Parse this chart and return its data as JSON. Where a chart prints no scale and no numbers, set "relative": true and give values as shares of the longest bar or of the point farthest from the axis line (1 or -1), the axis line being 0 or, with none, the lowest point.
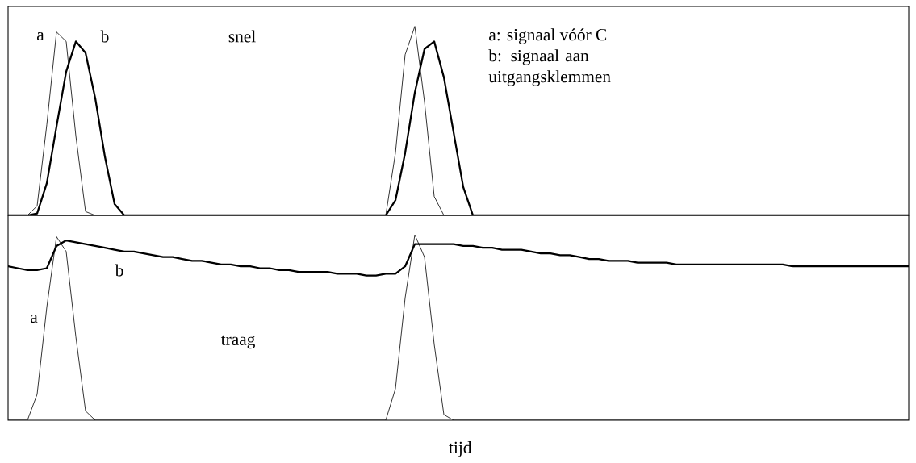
{
  "chart_data": [
    {
      "type": "line",
      "relative": true,
      "tick_labels": false,
      "categories": [
        null,
        null,
        null,
        null,
        null,
        null,
        null,
        null,
        null,
        null,
        null,
        null,
        null,
        null,
        null,
        null,
        null,
        null,
        null,
        null,
        null,
        null,
        null,
        null,
        null,
        null,
        null,
        null,
        null,
        null,
        null,
        null,
        null,
        null,
        null,
        null,
        null,
        null,
        null,
        null,
        null,
        null,
        null,
        null,
        null,
        null,
        null,
        null,
        null,
        null,
        null,
        null,
        null,
        null,
        null,
        null,
        null,
        null,
        null,
        null,
        null,
        null,
        null,
        null,
        null,
        null,
        null,
        null,
        null,
        null,
        null,
        null,
        null,
        null,
        null,
        null,
        null,
        null,
        null,
        null,
        null,
        null,
        null,
        null,
        null,
        null,
        null,
        null,
        null,
        null,
        null,
        null,
        null,
        null
      ],
      "series": [
        {
          "name": "a",
          "color": "#000000",
          "values": [
            0,
            0,
            0,
            0.05,
            0.48,
            0.97,
            0.92,
            0.42,
            0.02,
            0,
            0,
            0,
            0,
            0,
            0,
            0,
            0,
            0,
            0,
            0,
            0,
            0,
            0,
            0,
            0,
            0,
            0,
            0,
            0,
            0,
            0,
            0,
            0,
            0,
            0,
            0,
            0,
            0,
            0,
            0,
            0.33,
            0.85,
            1,
            0.6,
            0.1,
            0,
            0,
            0,
            0,
            0,
            0,
            0,
            0,
            0,
            0,
            0,
            0,
            0,
            0,
            0,
            0,
            0,
            0,
            0,
            0,
            0,
            0,
            0,
            0,
            0,
            0,
            0,
            0,
            0,
            0,
            0,
            0,
            0,
            0,
            0,
            0,
            0,
            0,
            0,
            0,
            0,
            0,
            0,
            0,
            0,
            0,
            0,
            0,
            0
          ]
        },
        {
          "name": "b",
          "color": "#000000",
          "values": [
            0,
            0,
            0,
            0.01,
            0.17,
            0.47,
            0.76,
            0.92,
            0.86,
            0.62,
            0.31,
            0.06,
            0,
            0,
            0,
            0,
            0,
            0,
            0,
            0,
            0,
            0,
            0,
            0,
            0,
            0,
            0,
            0,
            0,
            0,
            0,
            0,
            0,
            0,
            0,
            0,
            0,
            0,
            0,
            0,
            0.08,
            0.33,
            0.65,
            0.88,
            0.92,
            0.73,
            0.44,
            0.15,
            0,
            0,
            0,
            0,
            0,
            0,
            0,
            0,
            0,
            0,
            0,
            0,
            0,
            0,
            0,
            0,
            0,
            0,
            0,
            0,
            0,
            0,
            0,
            0,
            0,
            0,
            0,
            0,
            0,
            0,
            0,
            0,
            0,
            0,
            0,
            0,
            0,
            0,
            0,
            0,
            0,
            0,
            0,
            0,
            0,
            0
          ]
        }
      ],
      "annotations": [
        "snel",
        "a: signaal vóór C",
        "b: signaal aan uitgangsklemmen"
      ]
    },
    {
      "type": "line",
      "relative": true,
      "tick_labels": false,
      "xlabel": "tijd",
      "categories": [
        null,
        null,
        null,
        null,
        null,
        null,
        null,
        null,
        null,
        null,
        null,
        null,
        null,
        null,
        null,
        null,
        null,
        null,
        null,
        null,
        null,
        null,
        null,
        null,
        null,
        null,
        null,
        null,
        null,
        null,
        null,
        null,
        null,
        null,
        null,
        null,
        null,
        null,
        null,
        null,
        null,
        null,
        null,
        null,
        null,
        null,
        null,
        null,
        null,
        null,
        null,
        null,
        null,
        null,
        null,
        null,
        null,
        null,
        null,
        null,
        null,
        null,
        null,
        null,
        null,
        null,
        null,
        null,
        null,
        null,
        null,
        null,
        null,
        null,
        null,
        null,
        null,
        null,
        null,
        null,
        null,
        null,
        null,
        null,
        null,
        null,
        null,
        null,
        null,
        null,
        null,
        null,
        null,
        null
      ],
      "series": [
        {
          "name": "a",
          "color": "#000000",
          "values": [
            0,
            0,
            0,
            0.14,
            0.61,
            0.99,
            0.91,
            0.45,
            0.05,
            0,
            0,
            0,
            0,
            0,
            0,
            0,
            0,
            0,
            0,
            0,
            0,
            0,
            0,
            0,
            0,
            0,
            0,
            0,
            0,
            0,
            0,
            0,
            0,
            0,
            0,
            0,
            0,
            0,
            0,
            0,
            0.17,
            0.66,
            1,
            0.88,
            0.41,
            0.03,
            0,
            0,
            0,
            0,
            0,
            0,
            0,
            0,
            0,
            0,
            0,
            0,
            0,
            0,
            0,
            0,
            0,
            0,
            0,
            0,
            0,
            0,
            0,
            0,
            0,
            0,
            0,
            0,
            0,
            0,
            0,
            0,
            0,
            0,
            0,
            0,
            0,
            0,
            0,
            0,
            0,
            0,
            0,
            0,
            0,
            0,
            0,
            0
          ]
        },
        {
          "name": "b",
          "color": "#000000",
          "values": [
            0.83,
            0.82,
            0.81,
            0.81,
            0.82,
            0.94,
            0.97,
            0.96,
            0.95,
            0.94,
            0.93,
            0.92,
            0.91,
            0.91,
            0.9,
            0.89,
            0.88,
            0.88,
            0.87,
            0.86,
            0.86,
            0.85,
            0.84,
            0.84,
            0.83,
            0.83,
            0.82,
            0.82,
            0.81,
            0.81,
            0.8,
            0.8,
            0.8,
            0.8,
            0.79,
            0.79,
            0.79,
            0.78,
            0.78,
            0.79,
            0.79,
            0.83,
            0.95,
            0.95,
            0.95,
            0.95,
            0.95,
            0.94,
            0.94,
            0.93,
            0.93,
            0.92,
            0.92,
            0.92,
            0.91,
            0.9,
            0.9,
            0.89,
            0.89,
            0.88,
            0.87,
            0.87,
            0.86,
            0.86,
            0.86,
            0.85,
            0.85,
            0.85,
            0.85,
            0.84,
            0.84,
            0.84,
            0.84,
            0.84,
            0.84,
            0.84,
            0.84,
            0.84,
            0.84,
            0.84,
            0.84,
            0.83,
            0.83,
            0.83,
            0.83,
            0.83,
            0.83,
            0.83,
            0.83,
            0.83,
            0.83,
            0.83,
            0.83,
            0.83
          ]
        }
      ],
      "annotations": [
        "traag"
      ]
    }
  ]
}
